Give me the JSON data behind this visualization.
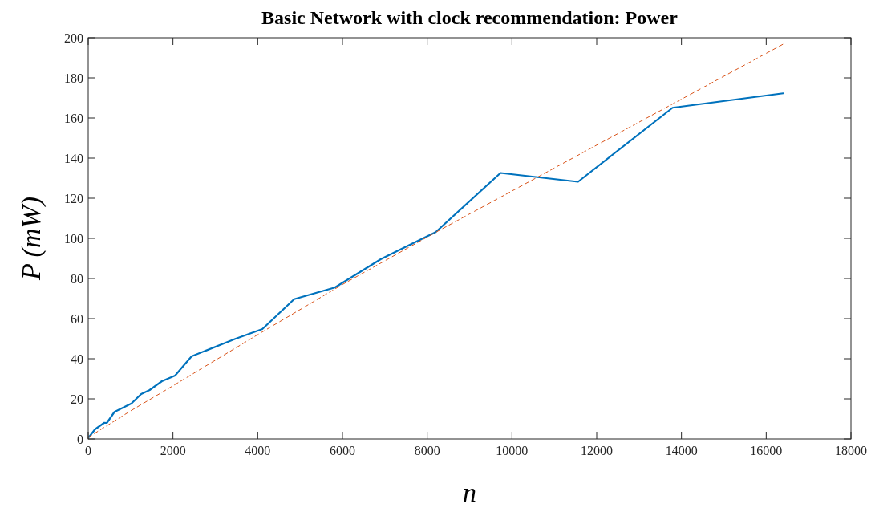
{
  "chart_data": {
    "type": "line",
    "title": "Basic Network with clock recommendation: Power",
    "xlabel": "n",
    "ylabel": "P (mW)",
    "xlim": [
      0,
      18000
    ],
    "xticks": [
      0,
      2000,
      4000,
      6000,
      8000,
      10000,
      12000,
      14000,
      16000,
      18000
    ],
    "ylim": [
      0,
      200
    ],
    "yticks": [
      0,
      20,
      40,
      60,
      80,
      100,
      120,
      140,
      160,
      180,
      200
    ],
    "grid": false,
    "series": [
      {
        "color": "#0072bd",
        "line_style": "solid",
        "x": [
          20,
          160,
          380,
          440,
          620,
          1020,
          1250,
          1450,
          1740,
          2050,
          2440,
          3470,
          4110,
          4860,
          5820,
          6910,
          8200,
          9730,
          11560,
          13790,
          16400
        ],
        "values": [
          1,
          4.8,
          8.1,
          8,
          13.5,
          17.7,
          22.4,
          24.4,
          28.8,
          31.6,
          41.2,
          49.9,
          54.8,
          69.7,
          75.5,
          89.7,
          103.1,
          132.6,
          128.2,
          165.1,
          172.3
        ]
      },
      {
        "color": "#d95319",
        "line_style": "dashed",
        "x": [
          0,
          1000,
          2000,
          4000,
          6000,
          8200,
          12000,
          16400
        ],
        "values": [
          0.8,
          14,
          26.5,
          52,
          77,
          103,
          146.5,
          196.8
        ]
      }
    ]
  }
}
